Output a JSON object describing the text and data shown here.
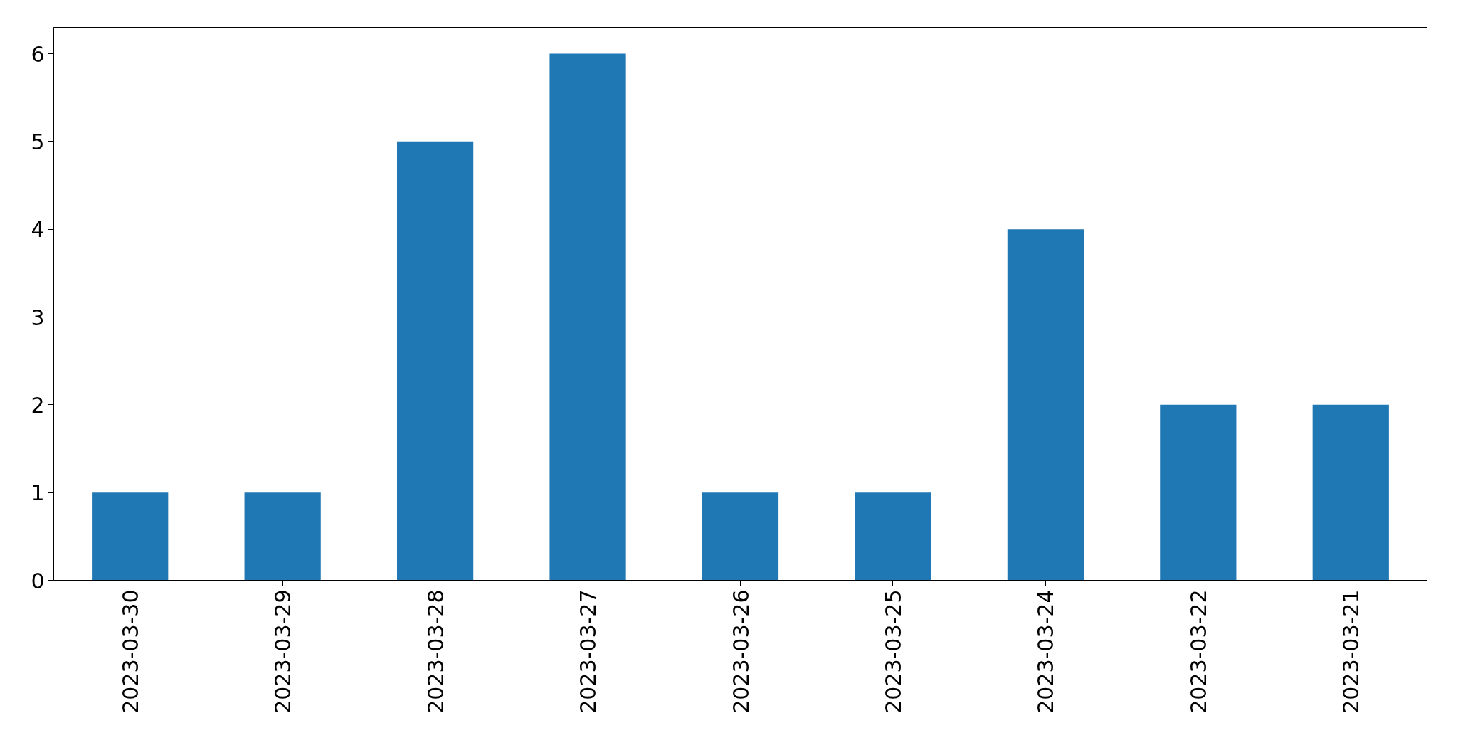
{
  "chart_data": {
    "type": "bar",
    "categories": [
      "2023-03-30",
      "2023-03-29",
      "2023-03-28",
      "2023-03-27",
      "2023-03-26",
      "2023-03-25",
      "2023-03-24",
      "2023-03-22",
      "2023-03-21"
    ],
    "values": [
      1,
      1,
      5,
      6,
      1,
      1,
      4,
      2,
      2
    ],
    "color": "#1f77b4",
    "ylim": [
      0,
      6.3
    ],
    "yticks": [
      0,
      1,
      2,
      3,
      4,
      5,
      6
    ],
    "grid": false
  }
}
